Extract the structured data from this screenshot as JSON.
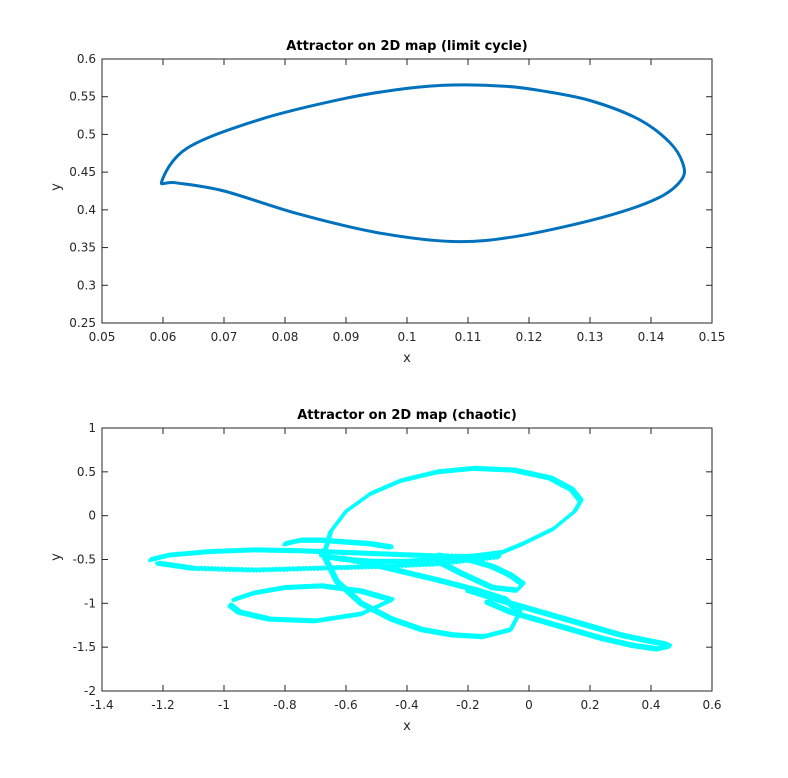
{
  "chart_data": [
    {
      "type": "line",
      "title": "Attractor on 2D map (limit cycle)",
      "xlabel": "x",
      "ylabel": "y",
      "xlim": [
        0.05,
        0.15
      ],
      "ylim": [
        0.25,
        0.6
      ],
      "xticks": [
        "0.05",
        "0.06",
        "0.07",
        "0.08",
        "0.09",
        "0.1",
        "0.11",
        "0.12",
        "0.13",
        "0.14",
        "0.15"
      ],
      "yticks": [
        "0.25",
        "0.3",
        "0.35",
        "0.4",
        "0.45",
        "0.5",
        "0.55",
        "0.6"
      ],
      "color": "#0072BD",
      "series": [
        {
          "x": [
            0.1075,
            0.116,
            0.122,
            0.13,
            0.138,
            0.143,
            0.1452,
            0.145,
            0.141,
            0.132,
            0.118,
            0.1075,
            0.095,
            0.082,
            0.07,
            0.062,
            0.0598,
            0.064,
            0.076,
            0.09,
            0.1,
            0.1075
          ],
          "y": [
            0.5655,
            0.564,
            0.558,
            0.545,
            0.52,
            0.49,
            0.462,
            0.44,
            0.415,
            0.39,
            0.365,
            0.358,
            0.37,
            0.395,
            0.425,
            0.436,
            0.438,
            0.482,
            0.52,
            0.548,
            0.561,
            0.5655
          ]
        }
      ]
    },
    {
      "type": "scatter",
      "title": "Attractor on 2D map (chaotic)",
      "xlabel": "x",
      "ylabel": "y",
      "xlim": [
        -1.4,
        0.6
      ],
      "ylim": [
        -2,
        1
      ],
      "xticks": [
        "-1.4",
        "-1.2",
        "-1",
        "-0.8",
        "-0.6",
        "-0.4",
        "-0.2",
        "0",
        "0.2",
        "0.4",
        "0.6"
      ],
      "yticks": [
        "-2",
        "-1.5",
        "-1",
        "-0.5",
        "0",
        "0.5",
        "1"
      ],
      "color": "#00FFFF",
      "series": [
        {
          "x": [
            -0.67,
            -0.65,
            -0.6,
            -0.52,
            -0.42,
            -0.3,
            -0.18,
            -0.05,
            0.07,
            0.14,
            0.17,
            0.15,
            0.08,
            -0.02,
            -0.09,
            -0.18,
            -0.28,
            -0.4,
            -0.52,
            -0.6,
            -0.66,
            -0.68,
            -0.67
          ],
          "y": [
            -0.42,
            -0.18,
            0.05,
            0.25,
            0.4,
            0.5,
            0.54,
            0.52,
            0.43,
            0.3,
            0.17,
            0.05,
            -0.15,
            -0.32,
            -0.42,
            -0.46,
            -0.49,
            -0.52,
            -0.52,
            -0.5,
            -0.47,
            -0.44,
            -0.42
          ]
        },
        {
          "x": [
            -0.68,
            -0.63,
            -0.55,
            -0.45,
            -0.35,
            -0.25,
            -0.15,
            -0.06,
            -0.03,
            -0.08,
            -0.17,
            -0.28,
            -0.4,
            -0.52,
            -0.62
          ],
          "y": [
            -0.4,
            -0.75,
            -1.0,
            -1.18,
            -1.3,
            -1.36,
            -1.38,
            -1.3,
            -1.1,
            -0.95,
            -0.85,
            -0.75,
            -0.65,
            -0.55,
            -0.48
          ]
        },
        {
          "x": [
            -1.24,
            -1.18,
            -1.05,
            -0.9,
            -0.75,
            -0.6,
            -0.45,
            -0.3,
            -0.1,
            -0.3,
            -0.5,
            -0.7,
            -0.9,
            -1.1,
            -1.22
          ],
          "y": [
            -0.5,
            -0.45,
            -0.41,
            -0.39,
            -0.4,
            -0.42,
            -0.44,
            -0.46,
            -0.47,
            -0.55,
            -0.58,
            -0.6,
            -0.62,
            -0.6,
            -0.54
          ]
        },
        {
          "x": [
            -0.98,
            -0.95,
            -0.85,
            -0.7,
            -0.55,
            -0.45,
            -0.55,
            -0.68,
            -0.8,
            -0.9,
            -0.97
          ],
          "y": [
            -1.02,
            -1.1,
            -1.18,
            -1.2,
            -1.12,
            -0.96,
            -0.86,
            -0.8,
            -0.82,
            -0.88,
            -0.96
          ]
        },
        {
          "x": [
            -0.2,
            -0.1,
            0.0,
            0.1,
            0.2,
            0.3,
            0.38,
            0.44,
            0.46,
            0.42,
            0.34,
            0.24,
            0.14,
            0.04,
            -0.06,
            -0.14
          ],
          "y": [
            -0.85,
            -0.96,
            -1.06,
            -1.16,
            -1.26,
            -1.36,
            -1.42,
            -1.46,
            -1.49,
            -1.52,
            -1.48,
            -1.4,
            -1.3,
            -1.2,
            -1.1,
            -0.98
          ]
        },
        {
          "x": [
            -0.3,
            -0.2,
            -0.12,
            -0.06,
            -0.02,
            -0.04,
            -0.12,
            -0.22,
            -0.3
          ],
          "y": [
            -0.45,
            -0.5,
            -0.58,
            -0.68,
            -0.78,
            -0.85,
            -0.82,
            -0.66,
            -0.52
          ]
        },
        {
          "x": [
            -0.8,
            -0.75,
            -0.68,
            -0.6,
            -0.52,
            -0.45
          ],
          "y": [
            -0.32,
            -0.28,
            -0.28,
            -0.3,
            -0.32,
            -0.36
          ]
        }
      ]
    }
  ]
}
